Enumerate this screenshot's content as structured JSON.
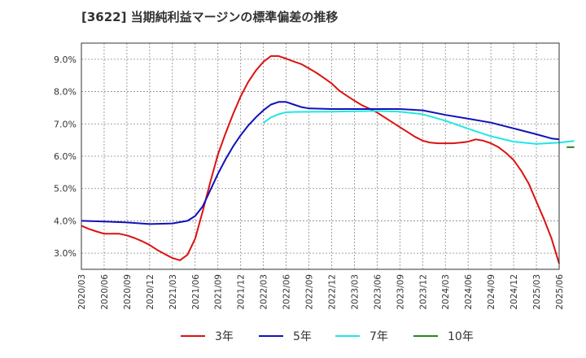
{
  "chart_data": {
    "type": "line",
    "title": "[3622]  当期純利益マージンの標準偏差の推移",
    "x": [
      "2020/03",
      "2020/06",
      "2020/09",
      "2020/12",
      "2021/03",
      "2021/06",
      "2021/09",
      "2021/12",
      "2022/03",
      "2022/06",
      "2022/09",
      "2022/12",
      "2023/03",
      "2023/06",
      "2023/09",
      "2023/12",
      "2024/03",
      "2024/06",
      "2024/09",
      "2024/12",
      "2025/03",
      "2025/06"
    ],
    "ylim": [
      2.5,
      9.5
    ],
    "yticks": [
      "3.0%",
      "4.0%",
      "5.0%",
      "6.0%",
      "7.0%",
      "8.0%",
      "9.0%"
    ],
    "grid": true,
    "legend_position": "bottom",
    "series": [
      {
        "name": "3年",
        "color": "#dd1111",
        "points": [
          [
            "2020/03",
            3.85
          ],
          [
            "2020/04",
            3.75
          ],
          [
            "2020/05",
            3.67
          ],
          [
            "2020/06",
            3.6
          ],
          [
            "2020/07",
            3.6
          ],
          [
            "2020/08",
            3.6
          ],
          [
            "2020/09",
            3.55
          ],
          [
            "2020/10",
            3.47
          ],
          [
            "2020/11",
            3.37
          ],
          [
            "2020/12",
            3.25
          ],
          [
            "2021/01",
            3.1
          ],
          [
            "2021/02",
            2.97
          ],
          [
            "2021/03",
            2.85
          ],
          [
            "2021/04",
            2.78
          ],
          [
            "2021/05",
            2.95
          ],
          [
            "2021/06",
            3.45
          ],
          [
            "2021/07",
            4.3
          ],
          [
            "2021/08",
            5.2
          ],
          [
            "2021/09",
            6.05
          ],
          [
            "2021/10",
            6.7
          ],
          [
            "2021/11",
            7.3
          ],
          [
            "2021/12",
            7.85
          ],
          [
            "2022/01",
            8.3
          ],
          [
            "2022/02",
            8.65
          ],
          [
            "2022/03",
            8.92
          ],
          [
            "2022/04",
            9.1
          ],
          [
            "2022/05",
            9.1
          ],
          [
            "2022/06",
            9.02
          ],
          [
            "2022/07",
            8.93
          ],
          [
            "2022/08",
            8.85
          ],
          [
            "2022/09",
            8.72
          ],
          [
            "2022/10",
            8.58
          ],
          [
            "2022/11",
            8.42
          ],
          [
            "2022/12",
            8.25
          ],
          [
            "2023/01",
            8.03
          ],
          [
            "2023/02",
            7.87
          ],
          [
            "2023/03",
            7.72
          ],
          [
            "2023/04",
            7.58
          ],
          [
            "2023/05",
            7.47
          ],
          [
            "2023/06",
            7.35
          ],
          [
            "2023/07",
            7.2
          ],
          [
            "2023/08",
            7.05
          ],
          [
            "2023/09",
            6.9
          ],
          [
            "2023/10",
            6.75
          ],
          [
            "2023/11",
            6.6
          ],
          [
            "2023/12",
            6.48
          ],
          [
            "2024/01",
            6.42
          ],
          [
            "2024/02",
            6.4
          ],
          [
            "2024/03",
            6.4
          ],
          [
            "2024/04",
            6.4
          ],
          [
            "2024/05",
            6.42
          ],
          [
            "2024/06",
            6.45
          ],
          [
            "2024/07",
            6.52
          ],
          [
            "2024/08",
            6.48
          ],
          [
            "2024/09",
            6.4
          ],
          [
            "2024/10",
            6.28
          ],
          [
            "2024/11",
            6.1
          ],
          [
            "2024/12",
            5.88
          ],
          [
            "2025/01",
            5.55
          ],
          [
            "2025/02",
            5.15
          ],
          [
            "2025/03",
            4.6
          ],
          [
            "2025/04",
            4.05
          ],
          [
            "2025/05",
            3.45
          ],
          [
            "2025/06",
            2.68
          ]
        ]
      },
      {
        "name": "5年",
        "color": "#1111bb",
        "points": [
          [
            "2020/03",
            4.0
          ],
          [
            "2020/06",
            3.98
          ],
          [
            "2020/09",
            3.95
          ],
          [
            "2020/12",
            3.9
          ],
          [
            "2021/03",
            3.92
          ],
          [
            "2021/05",
            4.0
          ],
          [
            "2021/06",
            4.15
          ],
          [
            "2021/07",
            4.45
          ],
          [
            "2021/08",
            4.95
          ],
          [
            "2021/09",
            5.45
          ],
          [
            "2021/10",
            5.9
          ],
          [
            "2021/11",
            6.3
          ],
          [
            "2021/12",
            6.65
          ],
          [
            "2022/01",
            6.95
          ],
          [
            "2022/02",
            7.2
          ],
          [
            "2022/03",
            7.42
          ],
          [
            "2022/04",
            7.6
          ],
          [
            "2022/05",
            7.68
          ],
          [
            "2022/06",
            7.68
          ],
          [
            "2022/07",
            7.6
          ],
          [
            "2022/08",
            7.52
          ],
          [
            "2022/09",
            7.48
          ],
          [
            "2022/12",
            7.46
          ],
          [
            "2023/06",
            7.46
          ],
          [
            "2023/09",
            7.46
          ],
          [
            "2023/12",
            7.42
          ],
          [
            "2024/03",
            7.28
          ],
          [
            "2024/06",
            7.16
          ],
          [
            "2024/09",
            7.04
          ],
          [
            "2024/12",
            6.86
          ],
          [
            "2025/03",
            6.68
          ],
          [
            "2025/05",
            6.55
          ],
          [
            "2025/06",
            6.52
          ]
        ]
      },
      {
        "name": "7年",
        "color": "#22e6e6",
        "points": [
          [
            "2022/03",
            7.03
          ],
          [
            "2022/04",
            7.2
          ],
          [
            "2022/05",
            7.3
          ],
          [
            "2022/06",
            7.36
          ],
          [
            "2022/07",
            7.37
          ],
          [
            "2022/12",
            7.38
          ],
          [
            "2023/06",
            7.4
          ],
          [
            "2023/09",
            7.38
          ],
          [
            "2023/12",
            7.3
          ],
          [
            "2024/03",
            7.1
          ],
          [
            "2024/06",
            6.85
          ],
          [
            "2024/09",
            6.62
          ],
          [
            "2024/12",
            6.45
          ],
          [
            "2025/03",
            6.38
          ],
          [
            "2025/06",
            6.42
          ],
          [
            "2025/08",
            6.47
          ]
        ]
      },
      {
        "name": "10年",
        "color": "#228822",
        "points": [
          [
            "2025/07",
            6.28
          ],
          [
            "2025/08",
            6.28
          ]
        ]
      }
    ]
  }
}
